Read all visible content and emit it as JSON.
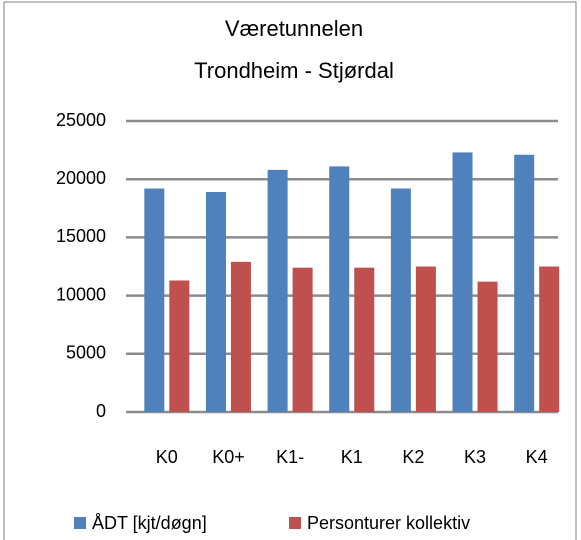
{
  "chart_data": {
    "type": "bar",
    "title": "Væretunnelen",
    "subtitle": "Trondheim - Stjørdal",
    "categories": [
      "K0",
      "K0+",
      "K1-",
      "K1",
      "K2",
      "K3",
      "K4"
    ],
    "series": [
      {
        "name": "ÅDT [kjt/døgn]",
        "color": "#4f81bd",
        "values": [
          19200,
          18900,
          20800,
          21100,
          19200,
          22300,
          22100
        ]
      },
      {
        "name": "Personturer kollektiv",
        "color": "#c0504d",
        "values": [
          11300,
          12900,
          12400,
          12400,
          12500,
          11200,
          12500
        ]
      }
    ],
    "ylim": [
      0,
      25000
    ],
    "yticks": [
      0,
      5000,
      10000,
      15000,
      20000,
      25000
    ],
    "grid": true,
    "legend": "bottom"
  }
}
